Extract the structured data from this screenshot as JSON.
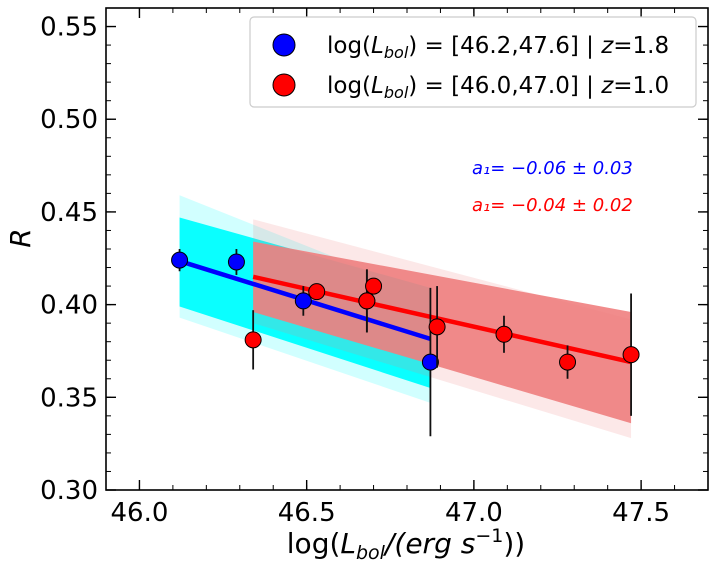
{
  "chart_data": {
    "type": "scatter",
    "xlabel_main": "log(",
    "xlabel_var": "L",
    "xlabel_sub": "bol",
    "xlabel_unit": "/(erg s",
    "xlabel_exp": "−1",
    "xlabel_close": "))",
    "ylabel": "R",
    "xlim": [
      45.9,
      47.7
    ],
    "ylim": [
      0.3,
      0.56
    ],
    "xticks": [
      46.0,
      46.5,
      47.0,
      47.5
    ],
    "xtick_labels": [
      "46.0",
      "46.5",
      "47.0",
      "47.5"
    ],
    "yticks": [
      0.3,
      0.35,
      0.4,
      0.45,
      0.5,
      0.55
    ],
    "ytick_labels": [
      "0.30",
      "0.35",
      "0.40",
      "0.45",
      "0.50",
      "0.55"
    ],
    "series": [
      {
        "name": "log(L_bol) = [46.2,47.6] | z=1.8",
        "legend_pre": "log(",
        "legend_var": "L",
        "legend_sub": "bol",
        "legend_post": ") = [46.2,47.6] | ",
        "legend_z": "z",
        "legend_zval": "=1.8",
        "color": "#0000ff",
        "band_color": "#00ffff",
        "points": [
          {
            "x": 46.12,
            "y": 0.424,
            "err": 0.006
          },
          {
            "x": 46.29,
            "y": 0.423,
            "err": 0.007
          },
          {
            "x": 46.49,
            "y": 0.402,
            "err": 0.008
          },
          {
            "x": 46.68,
            "y": 0.402,
            "err": 0.017
          },
          {
            "x": 46.87,
            "y": 0.369,
            "err": 0.04
          }
        ],
        "fit": {
          "x0": 46.12,
          "x1": 46.87,
          "y0": 0.4235,
          "y1": 0.3815
        },
        "band": {
          "x0": 46.12,
          "x1": 46.87,
          "upper0": 0.447,
          "lower0": 0.399,
          "upper1": 0.409,
          "lower1": 0.355
        },
        "annotation": "a₁= −0.06 ± 0.03"
      },
      {
        "name": "log(L_bol) = [46.0,47.0] | z=1.0",
        "legend_pre": "log(",
        "legend_var": "L",
        "legend_sub": "bol",
        "legend_post": ") = [46.0,47.0] | ",
        "legend_z": "z",
        "legend_zval": "=1.0",
        "color": "#ff0000",
        "band_color": "#f08080",
        "points": [
          {
            "x": 46.34,
            "y": 0.381,
            "err": 0.016
          },
          {
            "x": 46.53,
            "y": 0.407,
            "err": 0.004
          },
          {
            "x": 46.68,
            "y": 0.402,
            "err": 0.017
          },
          {
            "x": 46.7,
            "y": 0.41,
            "err": 0.004
          },
          {
            "x": 46.89,
            "y": 0.388,
            "err": 0.022
          },
          {
            "x": 47.09,
            "y": 0.384,
            "err": 0.01
          },
          {
            "x": 47.28,
            "y": 0.369,
            "err": 0.009
          },
          {
            "x": 47.47,
            "y": 0.373,
            "err": 0.033
          }
        ],
        "fit": {
          "x0": 46.34,
          "x1": 47.47,
          "y0": 0.415,
          "y1": 0.369
        },
        "band": {
          "x0": 46.34,
          "x1": 47.47,
          "upper0": 0.434,
          "lower0": 0.396,
          "upper1": 0.396,
          "lower1": 0.336
        },
        "annotation": "a₁= −0.04 ± 0.02"
      }
    ]
  }
}
